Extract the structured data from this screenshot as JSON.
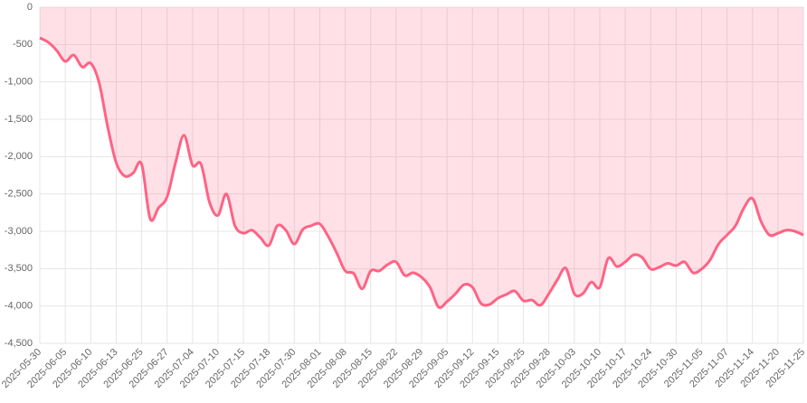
{
  "chart_data": {
    "type": "line",
    "categories": [
      "2025-05-30",
      null,
      null,
      "2025-06-05",
      null,
      null,
      "2025-06-10",
      null,
      null,
      "2025-06-13",
      null,
      null,
      "2025-06-25",
      null,
      null,
      "2025-06-27",
      null,
      null,
      "2025-07-04",
      null,
      null,
      "2025-07-10",
      null,
      null,
      "2025-07-15",
      null,
      null,
      "2025-07-18",
      null,
      null,
      "2025-07-30",
      null,
      null,
      "2025-08-01",
      null,
      null,
      "2025-08-08",
      null,
      null,
      "2025-08-15",
      null,
      null,
      "2025-08-22",
      null,
      null,
      "2025-08-29",
      null,
      null,
      "2025-09-05",
      null,
      null,
      "2025-09-12",
      null,
      null,
      "2025-09-15",
      null,
      null,
      "2025-09-25",
      null,
      null,
      "2025-09-28",
      null,
      null,
      "2025-10-03",
      null,
      null,
      "2025-10-10",
      null,
      null,
      "2025-10-17",
      null,
      null,
      "2025-10-24",
      null,
      null,
      "2025-10-30",
      null,
      null,
      "2025-11-05",
      null,
      null,
      "2025-11-07",
      null,
      null,
      "2025-11-14",
      null,
      null,
      "2025-11-20",
      null,
      null,
      "2025-11-25"
    ],
    "series": [
      {
        "color": "#ff6384",
        "fill": "rgba(255,99,132,0.2)",
        "values": [
          -411,
          -470,
          -580,
          -725,
          -640,
          -800,
          -750,
          -1015,
          -1600,
          -2080,
          -2260,
          -2220,
          -2100,
          -2830,
          -2685,
          -2540,
          -2080,
          -1715,
          -2115,
          -2100,
          -2610,
          -2785,
          -2500,
          -2925,
          -3025,
          -2985,
          -3085,
          -3190,
          -2925,
          -2985,
          -3170,
          -2975,
          -2925,
          -2900,
          -3070,
          -3290,
          -3530,
          -3565,
          -3770,
          -3530,
          -3530,
          -3445,
          -3410,
          -3590,
          -3555,
          -3615,
          -3750,
          -4015,
          -3940,
          -3835,
          -3715,
          -3750,
          -3965,
          -3980,
          -3895,
          -3845,
          -3800,
          -3930,
          -3920,
          -3990,
          -3835,
          -3650,
          -3495,
          -3835,
          -3835,
          -3680,
          -3750,
          -3360,
          -3470,
          -3410,
          -3315,
          -3350,
          -3505,
          -3480,
          -3430,
          -3460,
          -3410,
          -3555,
          -3505,
          -3385,
          -3170,
          -3050,
          -2925,
          -2685,
          -2560,
          -2865,
          -3050,
          -3025,
          -2985,
          -3000,
          -3050
        ]
      }
    ],
    "ylim": [
      -4500,
      0
    ],
    "yticks": [
      0,
      -500,
      {
        "value": -1000,
        "label": "-1,000"
      },
      {
        "value": -1500,
        "label": "-1,500"
      },
      {
        "value": -2000,
        "label": "-2,000"
      },
      {
        "value": -2500,
        "label": "-2,500"
      },
      {
        "value": -3000,
        "label": "-3,000"
      },
      {
        "value": -3500,
        "label": "-3,500"
      },
      {
        "value": -4000,
        "label": "-4,000"
      },
      {
        "value": -4500,
        "label": "-4,500"
      }
    ],
    "grid": true
  }
}
